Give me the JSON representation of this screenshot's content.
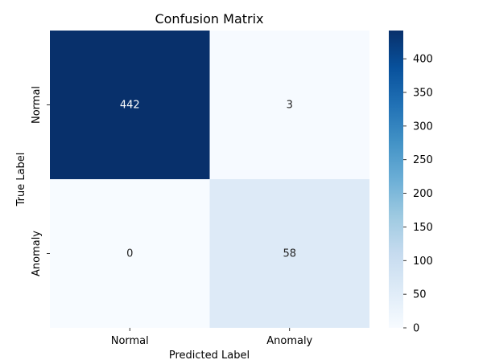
{
  "chart_data": {
    "type": "heatmap",
    "title": "Confusion Matrix",
    "xlabel": "Predicted Label",
    "ylabel": "True Label",
    "x_categories": [
      "Normal",
      "Anomaly"
    ],
    "y_categories": [
      "Normal",
      "Anomaly"
    ],
    "values": [
      [
        442,
        3
      ],
      [
        0,
        58
      ]
    ],
    "colormap": "Blues",
    "colorbar": {
      "min": 0,
      "max": 442,
      "ticks": [
        0,
        50,
        100,
        150,
        200,
        250,
        300,
        350,
        400
      ]
    },
    "grid": false,
    "legend": "colorbar-right"
  }
}
